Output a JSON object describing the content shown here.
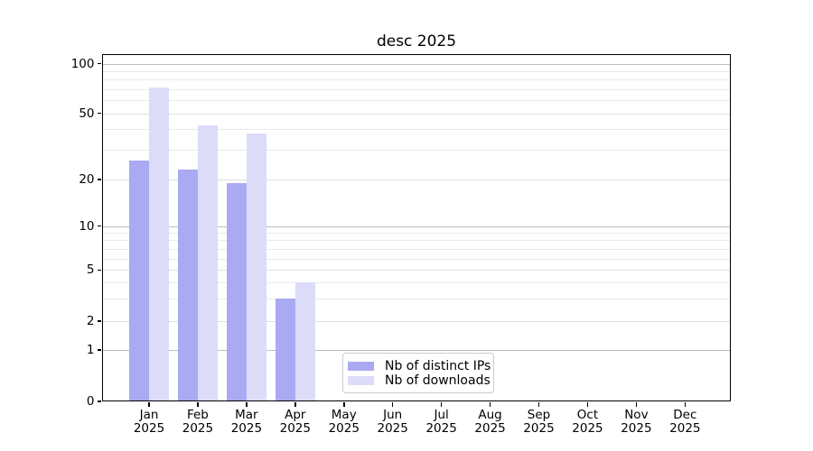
{
  "chart_data": {
    "type": "bar",
    "title": "desc 2025",
    "categories": [
      "Jan",
      "Feb",
      "Mar",
      "Apr",
      "May",
      "Jun",
      "Jul",
      "Aug",
      "Sep",
      "Oct",
      "Nov",
      "Dec"
    ],
    "category_year": "2025",
    "series": [
      {
        "name": "Nb of distinct IPs",
        "color": "#aaaaf2",
        "values": [
          26,
          23,
          19,
          3,
          0,
          0,
          0,
          0,
          0,
          0,
          0,
          0
        ]
      },
      {
        "name": "Nb of downloads",
        "color": "#dcdcf9",
        "values": [
          72,
          42,
          38,
          4,
          0,
          0,
          0,
          0,
          0,
          0,
          0,
          0
        ]
      }
    ],
    "y_ticks": [
      0,
      1,
      2,
      5,
      10,
      20,
      50,
      100
    ],
    "y_major_gridlines": [
      1,
      10,
      100
    ],
    "y_minor_gridlines": [
      3,
      4,
      6,
      7,
      8,
      9,
      30,
      40,
      60,
      70,
      80,
      90
    ],
    "y_scale": "log-like (compressed below 10, zero baseline shown)",
    "ylim": [
      0,
      115
    ],
    "grid": true,
    "legend_position": "lower center",
    "colors": {
      "bar_distinct_ips": "#aaaaf2",
      "bar_downloads": "#dcdcf9",
      "grid_major": "#bdbdbd",
      "grid_minor": "#eaeaea",
      "axis": "#000000",
      "background": "#ffffff"
    }
  }
}
